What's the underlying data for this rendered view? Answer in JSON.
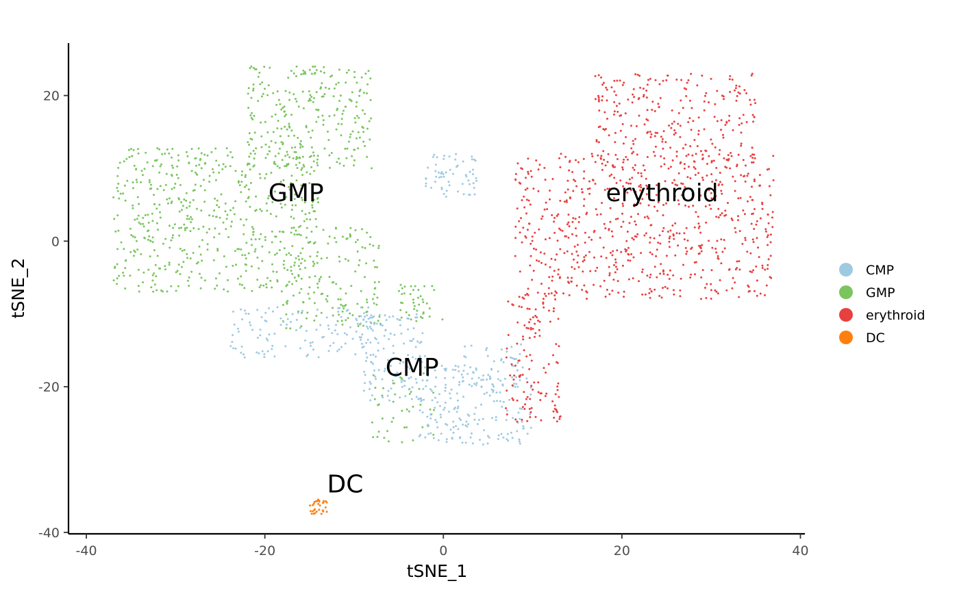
{
  "chart_data": {
    "type": "scatter",
    "title": "",
    "xlabel": "tSNE_1",
    "ylabel": "tSNE_2",
    "xlim": [
      -42,
      40.5
    ],
    "ylim": [
      -40.2,
      27.2
    ],
    "x_ticks": [
      -40,
      -20,
      0,
      20,
      40
    ],
    "y_ticks": [
      -40,
      -20,
      0,
      20
    ],
    "x_tick_labels": [
      "-40",
      "-20",
      "0",
      "20",
      "40"
    ],
    "y_tick_labels": [
      "-40",
      "-20",
      "0",
      "20"
    ],
    "grid": false,
    "legend_position": "right",
    "legend": [
      {
        "name": "CMP",
        "color": "#9ecae1"
      },
      {
        "name": "GMP",
        "color": "#7bc55f"
      },
      {
        "name": "erythroid",
        "color": "#e8403f"
      },
      {
        "name": "DC",
        "color": "#ff7f0e"
      }
    ],
    "cluster_labels": [
      {
        "text": "GMP",
        "x": -16.5,
        "y": 5.5
      },
      {
        "text": "erythroid",
        "x": 24.5,
        "y": 5.5
      },
      {
        "text": "CMP",
        "x": -3.5,
        "y": -18.5
      },
      {
        "text": "DC",
        "x": -11,
        "y": -34.5
      }
    ],
    "series": [
      {
        "name": "GMP",
        "color": "#7bc55f",
        "regions": [
          {
            "x": [
              -37,
              -14
            ],
            "y": [
              -7,
              13
            ],
            "n": 560
          },
          {
            "x": [
              -22,
              -8
            ],
            "y": [
              10,
              24
            ],
            "n": 260
          },
          {
            "x": [
              -18,
              -7
            ],
            "y": [
              -12,
              2
            ],
            "n": 150
          },
          {
            "x": [
              -5,
              0
            ],
            "y": [
              -11,
              -6
            ],
            "n": 40
          },
          {
            "x": [
              -8,
              -1
            ],
            "y": [
              -28,
              -18
            ],
            "n": 45
          }
        ]
      },
      {
        "name": "CMP",
        "color": "#9ecae1",
        "regions": [
          {
            "x": [
              -2,
              4
            ],
            "y": [
              6,
              12
            ],
            "n": 60
          },
          {
            "x": [
              -24,
              -8
            ],
            "y": [
              -16,
              -9
            ],
            "n": 120
          },
          {
            "x": [
              -9,
              -2
            ],
            "y": [
              -22,
              -10
            ],
            "n": 130
          },
          {
            "x": [
              -3,
              10
            ],
            "y": [
              -28,
              -17
            ],
            "n": 190
          },
          {
            "x": [
              2,
              9
            ],
            "y": [
              -20,
              -14
            ],
            "n": 50
          }
        ]
      },
      {
        "name": "erythroid",
        "color": "#e8403f",
        "regions": [
          {
            "x": [
              8,
              37
            ],
            "y": [
              -8,
              12
            ],
            "n": 650
          },
          {
            "x": [
              17,
              35
            ],
            "y": [
              10,
              23
            ],
            "n": 260
          },
          {
            "x": [
              7,
              13
            ],
            "y": [
              -25,
              -7
            ],
            "n": 120
          },
          {
            "x": [
              12.5,
              13.5
            ],
            "y": [
              -25,
              -23
            ],
            "n": 8
          }
        ]
      },
      {
        "name": "DC",
        "color": "#ff7f0e",
        "regions": [
          {
            "x": [
              -15,
              -13
            ],
            "y": [
              -37.5,
              -35.5
            ],
            "n": 30
          }
        ]
      }
    ]
  }
}
